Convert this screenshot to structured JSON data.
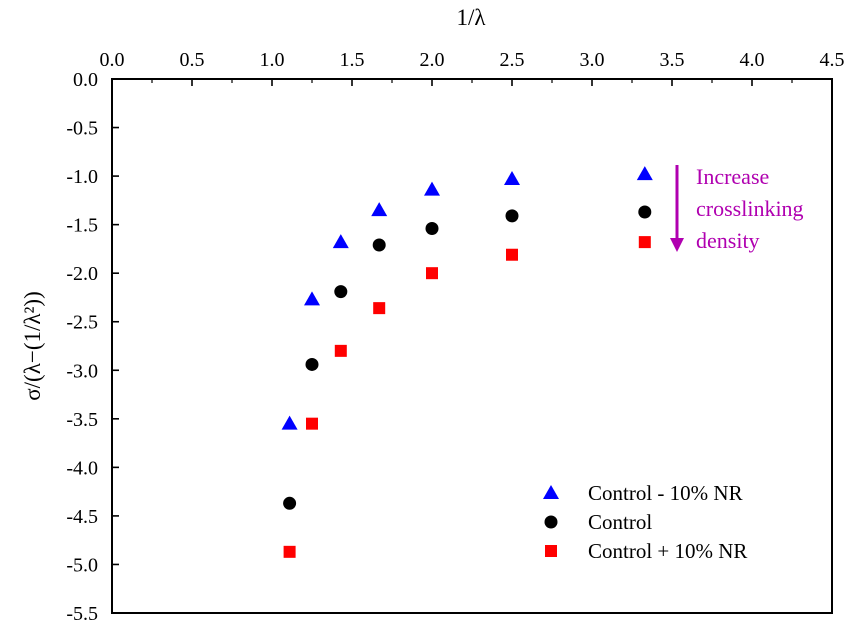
{
  "chart_data": {
    "type": "scatter",
    "xlabel": "1/λ",
    "ylabel": "σ/(λ−(1/λ²))",
    "xlim": [
      0.0,
      4.5
    ],
    "ylim": [
      -5.5,
      0.0
    ],
    "x_axis_position": "top",
    "x_ticks": [
      "0.0",
      "0.5",
      "1.0",
      "1.5",
      "2.0",
      "2.5",
      "3.0",
      "3.5",
      "4.0",
      "4.5"
    ],
    "y_ticks": [
      "0.0",
      "-0.5",
      "-1.0",
      "-1.5",
      "-2.0",
      "-2.5",
      "-3.0",
      "-3.5",
      "-4.0",
      "-4.5",
      "-5.0",
      "-5.5"
    ],
    "grid": false,
    "legend_position": "bottom-right",
    "series": [
      {
        "name": "Control - 10% NR",
        "marker": "triangle",
        "color": "#0000ff",
        "points": [
          {
            "x": 1.11,
            "y": -3.55
          },
          {
            "x": 1.25,
            "y": -2.27
          },
          {
            "x": 1.43,
            "y": -1.68
          },
          {
            "x": 1.67,
            "y": -1.35
          },
          {
            "x": 2.0,
            "y": -1.14
          },
          {
            "x": 2.5,
            "y": -1.03
          },
          {
            "x": 3.33,
            "y": -0.98
          }
        ]
      },
      {
        "name": "Control",
        "marker": "circle",
        "color": "#000000",
        "points": [
          {
            "x": 1.11,
            "y": -4.37
          },
          {
            "x": 1.25,
            "y": -2.94
          },
          {
            "x": 1.43,
            "y": -2.19
          },
          {
            "x": 1.67,
            "y": -1.71
          },
          {
            "x": 2.0,
            "y": -1.54
          },
          {
            "x": 2.5,
            "y": -1.41
          },
          {
            "x": 3.33,
            "y": -1.37
          }
        ]
      },
      {
        "name": "Control + 10% NR",
        "marker": "square",
        "color": "#ff0000",
        "points": [
          {
            "x": 1.11,
            "y": -4.87
          },
          {
            "x": 1.25,
            "y": -3.55
          },
          {
            "x": 1.43,
            "y": -2.8
          },
          {
            "x": 1.67,
            "y": -2.36
          },
          {
            "x": 2.0,
            "y": -2.0
          },
          {
            "x": 2.5,
            "y": -1.81
          },
          {
            "x": 3.33,
            "y": -1.68
          }
        ]
      }
    ],
    "annotation": {
      "lines": [
        "Increase",
        "crosslinking",
        "density"
      ],
      "color": "#b000b0",
      "arrow": "down"
    }
  }
}
